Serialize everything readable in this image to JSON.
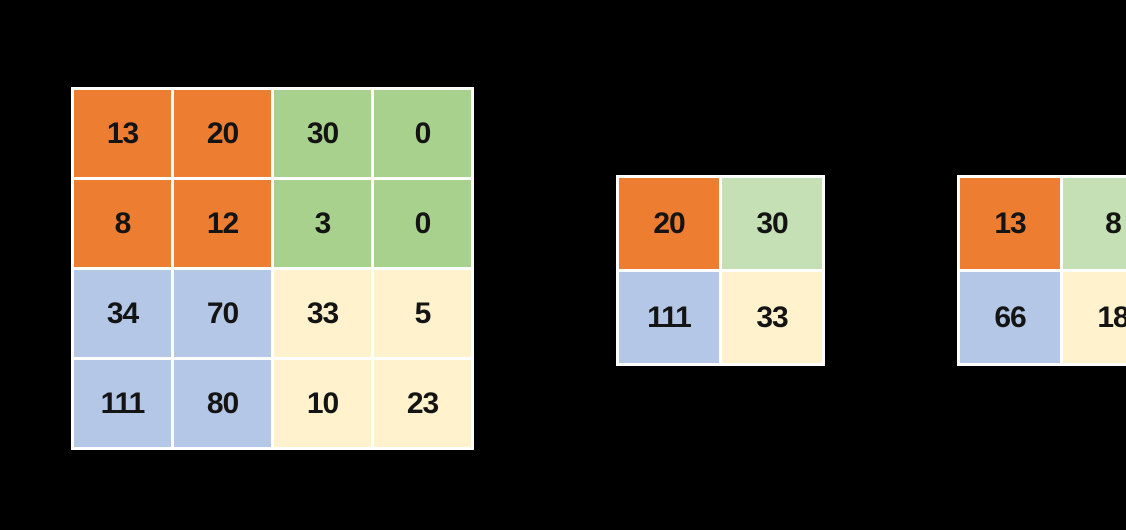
{
  "canvas": {
    "background": "#000000",
    "grid_line_color": "#ffffff",
    "text_color": "#141414"
  },
  "colors": {
    "orange": "#ED7D31",
    "green": "#A9D18E",
    "green_light": "#C5E0B4",
    "blue": "#B4C7E7",
    "cream": "#FFF2CC"
  },
  "matrix_4x4": {
    "rows": [
      [
        "13",
        "20",
        "30",
        "0"
      ],
      [
        "8",
        "12",
        "3",
        "0"
      ],
      [
        "34",
        "70",
        "33",
        "5"
      ],
      [
        "111",
        "80",
        "10",
        "23"
      ]
    ]
  },
  "matrix_2x2_center": {
    "rows": [
      [
        "20",
        "30"
      ],
      [
        "111",
        "33"
      ]
    ]
  },
  "matrix_2x2_right": {
    "rows": [
      [
        "13",
        "8"
      ],
      [
        "66",
        "18"
      ]
    ]
  }
}
